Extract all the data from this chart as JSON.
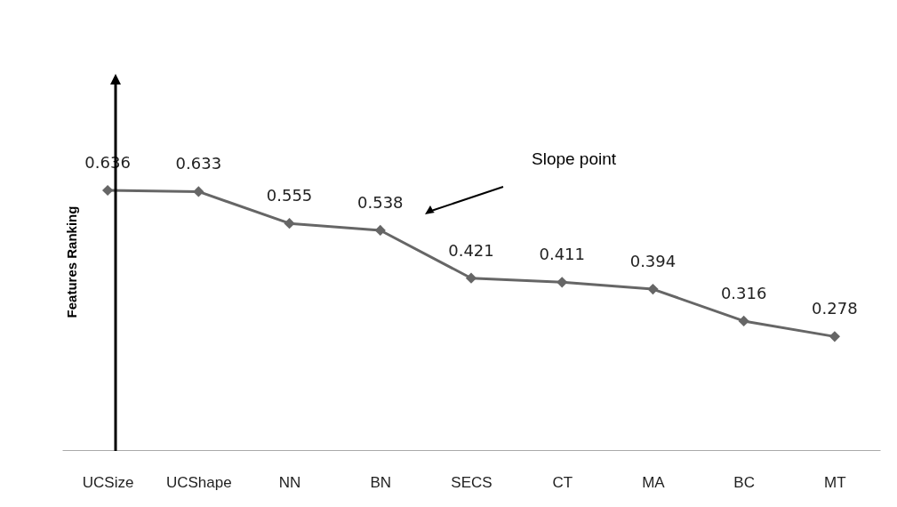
{
  "chart_data": {
    "type": "line",
    "ylabel": "Features Ranking",
    "categories": [
      "UCSize",
      "UCShape",
      "NN",
      "BN",
      "SECS",
      "CT",
      "MA",
      "BC",
      "MT"
    ],
    "series": [
      {
        "color": "#666666",
        "values": [
          0.636,
          0.633,
          0.555,
          0.538,
          0.421,
          0.411,
          0.394,
          0.316,
          0.278
        ]
      }
    ],
    "tick_labels": "x",
    "data_labels": true,
    "marker": "diamond",
    "line_style": "solid",
    "grid": false,
    "annotations": [
      "Slope point"
    ]
  }
}
